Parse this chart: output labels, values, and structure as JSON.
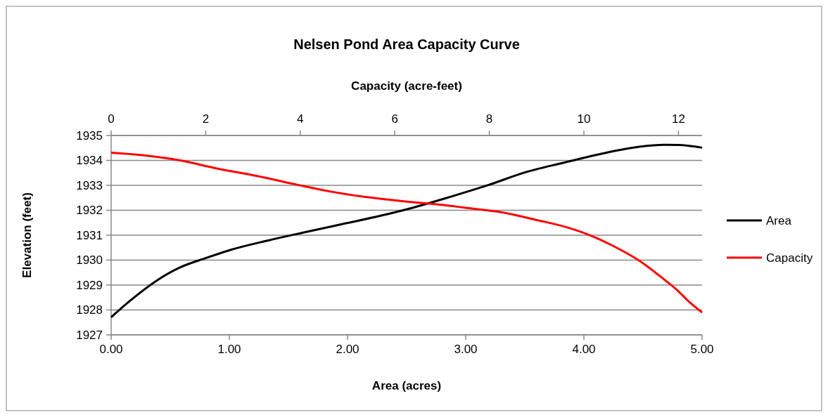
{
  "chart_data": {
    "type": "line",
    "title": "Nelsen Pond Area Capacity Curve",
    "xlabel": "Area (acres)",
    "x2label": "Capacity (acre-feet)",
    "ylabel": "Elevation (feet)",
    "xlim": [
      0,
      5
    ],
    "xticks": [
      {
        "value": 0,
        "label": "0.00"
      },
      {
        "value": 1,
        "label": "1.00"
      },
      {
        "value": 2,
        "label": "2.00"
      },
      {
        "value": 3,
        "label": "3.00"
      },
      {
        "value": 4,
        "label": "4.00"
      },
      {
        "value": 5,
        "label": "5.00"
      }
    ],
    "x2lim": [
      0,
      12.5
    ],
    "x2ticks": [
      0,
      2,
      4,
      6,
      8,
      10,
      12
    ],
    "ylim": [
      1927,
      1935
    ],
    "yticks": [
      1927,
      1928,
      1929,
      1930,
      1931,
      1932,
      1933,
      1934,
      1935
    ],
    "grid": "y",
    "legend": "right",
    "marker": "none",
    "line_style": "solid",
    "series": [
      {
        "name": "Area",
        "color": "#000000",
        "x": [
          0,
          0.16,
          0.37,
          0.58,
          0.8,
          1.01,
          1.33,
          1.64,
          1.96,
          2.28,
          2.55,
          2.87,
          3.19,
          3.51,
          3.83,
          4.04,
          4.26,
          4.47,
          4.68,
          4.81,
          5.0
        ],
        "values": [
          1927.71,
          1928.37,
          1929.13,
          1929.7,
          1930.08,
          1930.41,
          1930.79,
          1931.12,
          1931.45,
          1931.78,
          1932.1,
          1932.54,
          1933.01,
          1933.53,
          1933.91,
          1934.15,
          1934.38,
          1934.55,
          1934.63,
          1934.62,
          1934.51
        ]
      },
      {
        "name": "Capacity",
        "color": "#ff0000",
        "axis": "x2",
        "x": [
          0,
          0.66,
          1.46,
          2.25,
          3.05,
          3.85,
          4.64,
          5.44,
          6.23,
          7.03,
          7.45,
          8.25,
          9.04,
          9.58,
          10.1,
          10.64,
          11.17,
          11.7,
          11.97,
          12.23,
          12.5
        ],
        "values": [
          1934.31,
          1934.21,
          1934.0,
          1933.67,
          1933.39,
          1933.06,
          1932.75,
          1932.52,
          1932.35,
          1932.21,
          1932.11,
          1931.92,
          1931.59,
          1931.35,
          1931.02,
          1930.55,
          1929.98,
          1929.22,
          1928.8,
          1928.32,
          1927.9
        ]
      }
    ]
  }
}
